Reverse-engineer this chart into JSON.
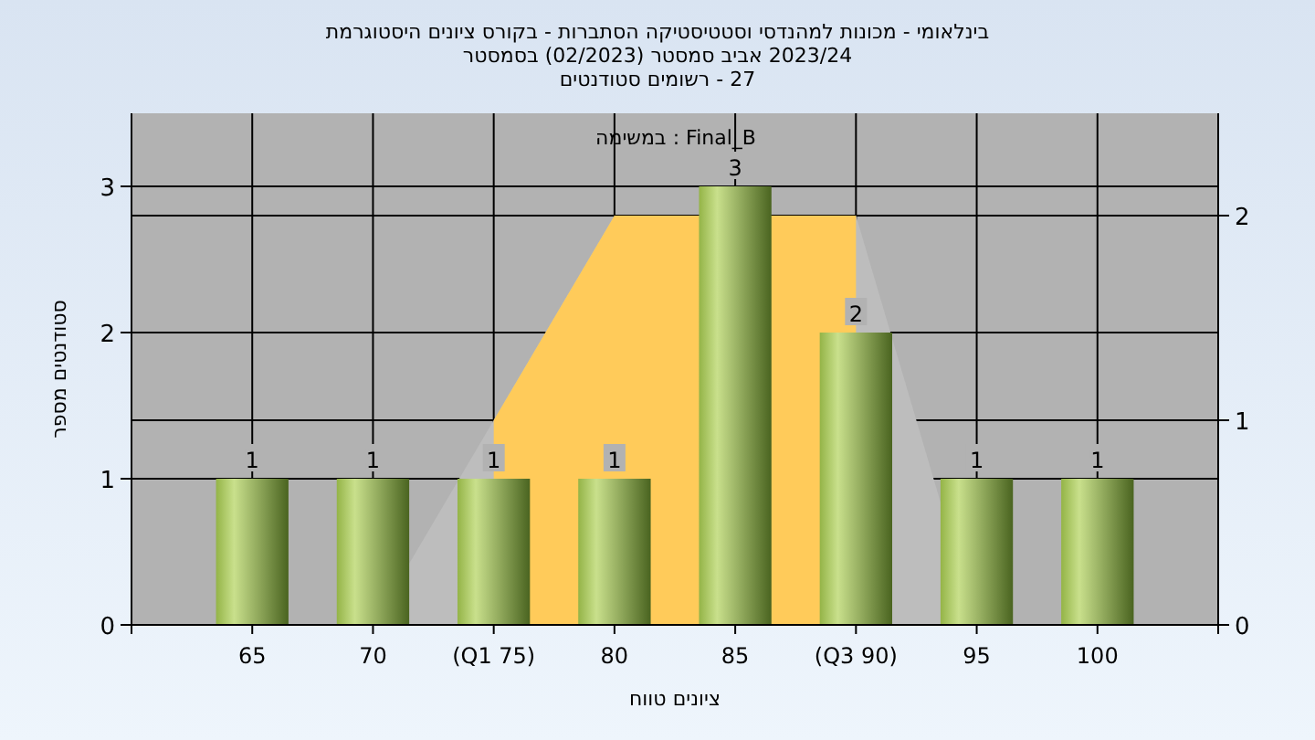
{
  "chart_data": {
    "type": "bar",
    "title": "היסטוגרמת ציונים בקורס - הסתברות וסטטיסטיקה למהנדסי מכונות - בינלאומי",
    "subtitle": "בסמסטר (02/2023) סמסטר אביב 2023/24",
    "xlabel": "טווח ציונים",
    "ylabel": "מספר סטודנטים",
    "annotations": [
      "סטודנטים רשומים - 27",
      "במשימה : Final_B"
    ],
    "categories": [
      "65",
      "70",
      "(Q1 75)",
      "80",
      "85",
      "(Q3 90)",
      "95",
      "100"
    ],
    "series": [
      {
        "type": "area",
        "axis": "y2",
        "color": "#bdbdbd",
        "x": [
          "70",
          "(Q1 75)",
          "80",
          "(Q3 90)",
          "95"
        ],
        "values": [
          0,
          1,
          2,
          2,
          0
        ]
      },
      {
        "type": "area",
        "axis": "y2",
        "color": "#ffcb5a",
        "x": [
          "(Q1 75)",
          "80",
          "(Q3 90)"
        ],
        "values": [
          1,
          2,
          2
        ]
      },
      {
        "color": "#94b447",
        "values": [
          1,
          1,
          1,
          1,
          3,
          2,
          1,
          1
        ],
        "value_labels": [
          "1",
          "1",
          "1",
          "1",
          "3",
          "2",
          "1",
          "1"
        ]
      }
    ],
    "ylim": [
      0,
      3.5
    ],
    "yticks": [
      0,
      1,
      2,
      3
    ],
    "y2lim": [
      0,
      2.5
    ],
    "y2ticks": [
      0,
      1,
      2
    ],
    "grid": true
  }
}
